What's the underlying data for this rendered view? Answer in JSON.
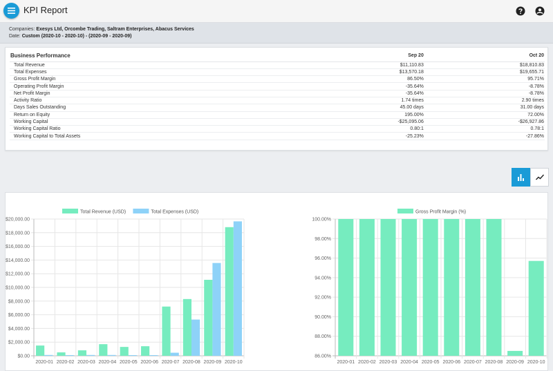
{
  "app": {
    "title": "KPI Report"
  },
  "icons": {
    "menu": "menu-icon",
    "help": "help-icon",
    "account": "account-icon",
    "bar_chart": "bar-chart-icon",
    "line_chart": "line-chart-icon"
  },
  "colors": {
    "accent": "#1a9bd7",
    "revenue": "#76ecbf",
    "expenses": "#8ed2f8",
    "gross_margin": "#76ecbf"
  },
  "filters": {
    "companies_label": "Companies:",
    "companies_value": "Exesys Ltd, Orcombe Trading, Saltram Enterprises, Abacus Services",
    "date_label": "Date:",
    "date_value": "Custom (2020-10 - 2020-10) - (2020-09 - 2020-09)"
  },
  "performance": {
    "title": "Business Performance",
    "columns": [
      "Sep 20",
      "Oct 20"
    ],
    "rows": [
      {
        "metric": "Total Revenue",
        "values": [
          "$11,110.83",
          "$18,810.83"
        ]
      },
      {
        "metric": "Total Expenses",
        "values": [
          "$13,570.18",
          "$19,655.71"
        ]
      },
      {
        "metric": "Gross Profit Margin",
        "values": [
          "86.50%",
          "95.71%"
        ]
      },
      {
        "metric": "Operating Profit Margin",
        "values": [
          "-35.64%",
          "-8.78%"
        ]
      },
      {
        "metric": "Net Profit Margin",
        "values": [
          "-35.64%",
          "-8.78%"
        ]
      },
      {
        "metric": "Activity Ratio",
        "values": [
          "1.74 times",
          "2.90 times"
        ]
      },
      {
        "metric": "Days Sales Outstanding",
        "values": [
          "45.00 days",
          "31.00 days"
        ]
      },
      {
        "metric": "Return on Equity",
        "values": [
          "195.00%",
          "72.00%"
        ]
      },
      {
        "metric": "Working Capital",
        "values": [
          "-$25,095.06",
          "-$26,927.86"
        ]
      },
      {
        "metric": "Working Capital Ratio",
        "values": [
          "0.80:1",
          "0.78:1"
        ]
      },
      {
        "metric": "Working Capital to Total Assets",
        "values": [
          "-25.23%",
          "-27.86%"
        ]
      }
    ]
  },
  "chart_toggle": {
    "selected": "bar"
  },
  "chart_data": [
    {
      "type": "bar",
      "categories": [
        "2020-01",
        "2020-02",
        "2020-03",
        "2020-04",
        "2020-05",
        "2020-06",
        "2020-07",
        "2020-08",
        "2020-09",
        "2020-10"
      ],
      "series": [
        {
          "name": "Total Revenue (USD)",
          "color": "#76ecbf",
          "values": [
            1500,
            500,
            800,
            1700,
            1300,
            1400,
            7200,
            8300,
            11110.83,
            18810.83
          ]
        },
        {
          "name": "Total Expenses (USD)",
          "color": "#8ed2f8",
          "values": [
            120,
            100,
            120,
            120,
            100,
            100,
            450,
            5300,
            13570.18,
            19655.71
          ]
        }
      ],
      "yticks": [
        "$0.00",
        "$2,000.00",
        "$4,000.00",
        "$6,000.00",
        "$8,000.00",
        "$10,000.00",
        "$12,000.00",
        "$14,000.00",
        "$16,000.00",
        "$18,000.00",
        "$20,000.00"
      ],
      "ylim": [
        0,
        20000
      ],
      "legend": "top-center",
      "grid": true
    },
    {
      "type": "bar",
      "categories": [
        "2020-01",
        "2020-02",
        "2020-03",
        "2020-04",
        "2020-05",
        "2020-06",
        "2020-07",
        "2020-08",
        "2020-09",
        "2020-10"
      ],
      "series": [
        {
          "name": "Gross Profit Margin (%)",
          "color": "#76ecbf",
          "values": [
            100,
            100,
            100,
            100,
            100,
            100,
            100,
            100,
            86.5,
            95.71
          ]
        }
      ],
      "yticks": [
        "86.00%",
        "88.00%",
        "90.00%",
        "92.00%",
        "94.00%",
        "96.00%",
        "98.00%",
        "100.00%"
      ],
      "ylim": [
        86,
        100
      ],
      "legend": "top-center",
      "grid": true
    }
  ]
}
